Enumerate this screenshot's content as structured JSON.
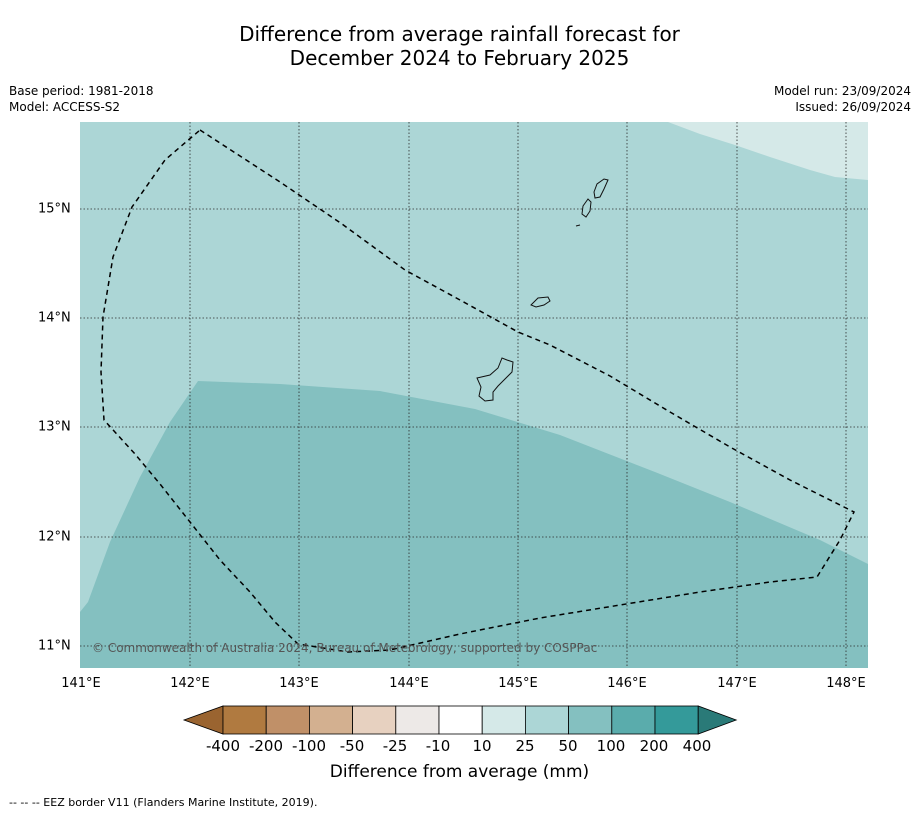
{
  "title": {
    "line1": "Difference from average rainfall forecast for",
    "line2": "December 2024 to February 2025"
  },
  "meta_left": {
    "base_period": "Base period: 1981-2018",
    "model": "Model: ACCESS-S2"
  },
  "meta_right": {
    "model_run": "Model run: 23/09/2024",
    "issued": "Issued: 26/09/2024"
  },
  "map": {
    "lon_labels": [
      "141°E",
      "142°E",
      "143°E",
      "144°E",
      "145°E",
      "146°E",
      "147°E",
      "148°E"
    ],
    "lat_labels": [
      "15°N",
      "14°N",
      "13°N",
      "12°N",
      "11°N"
    ],
    "copyright": "© Commonwealth of Australia 2024, Bureau of Meteorology, supported by COSPPac"
  },
  "colorbar": {
    "ticks": [
      "-400",
      "-200",
      "-100",
      "-50",
      "-25",
      "-10",
      "10",
      "25",
      "50",
      "100",
      "200",
      "400"
    ],
    "colors": [
      "#9a6430",
      "#b07a40",
      "#c09068",
      "#d3b090",
      "#e7d1c0",
      "#ede9e7",
      "#ffffff",
      "#d5e9e8",
      "#acd6d6",
      "#84c0c0",
      "#5aacac",
      "#349a9a",
      "#2a7a78"
    ],
    "label": "Difference from average (mm)"
  },
  "footnote": "--  --  -- EEZ border V11 (Flanders Marine Institute, 2019)."
}
